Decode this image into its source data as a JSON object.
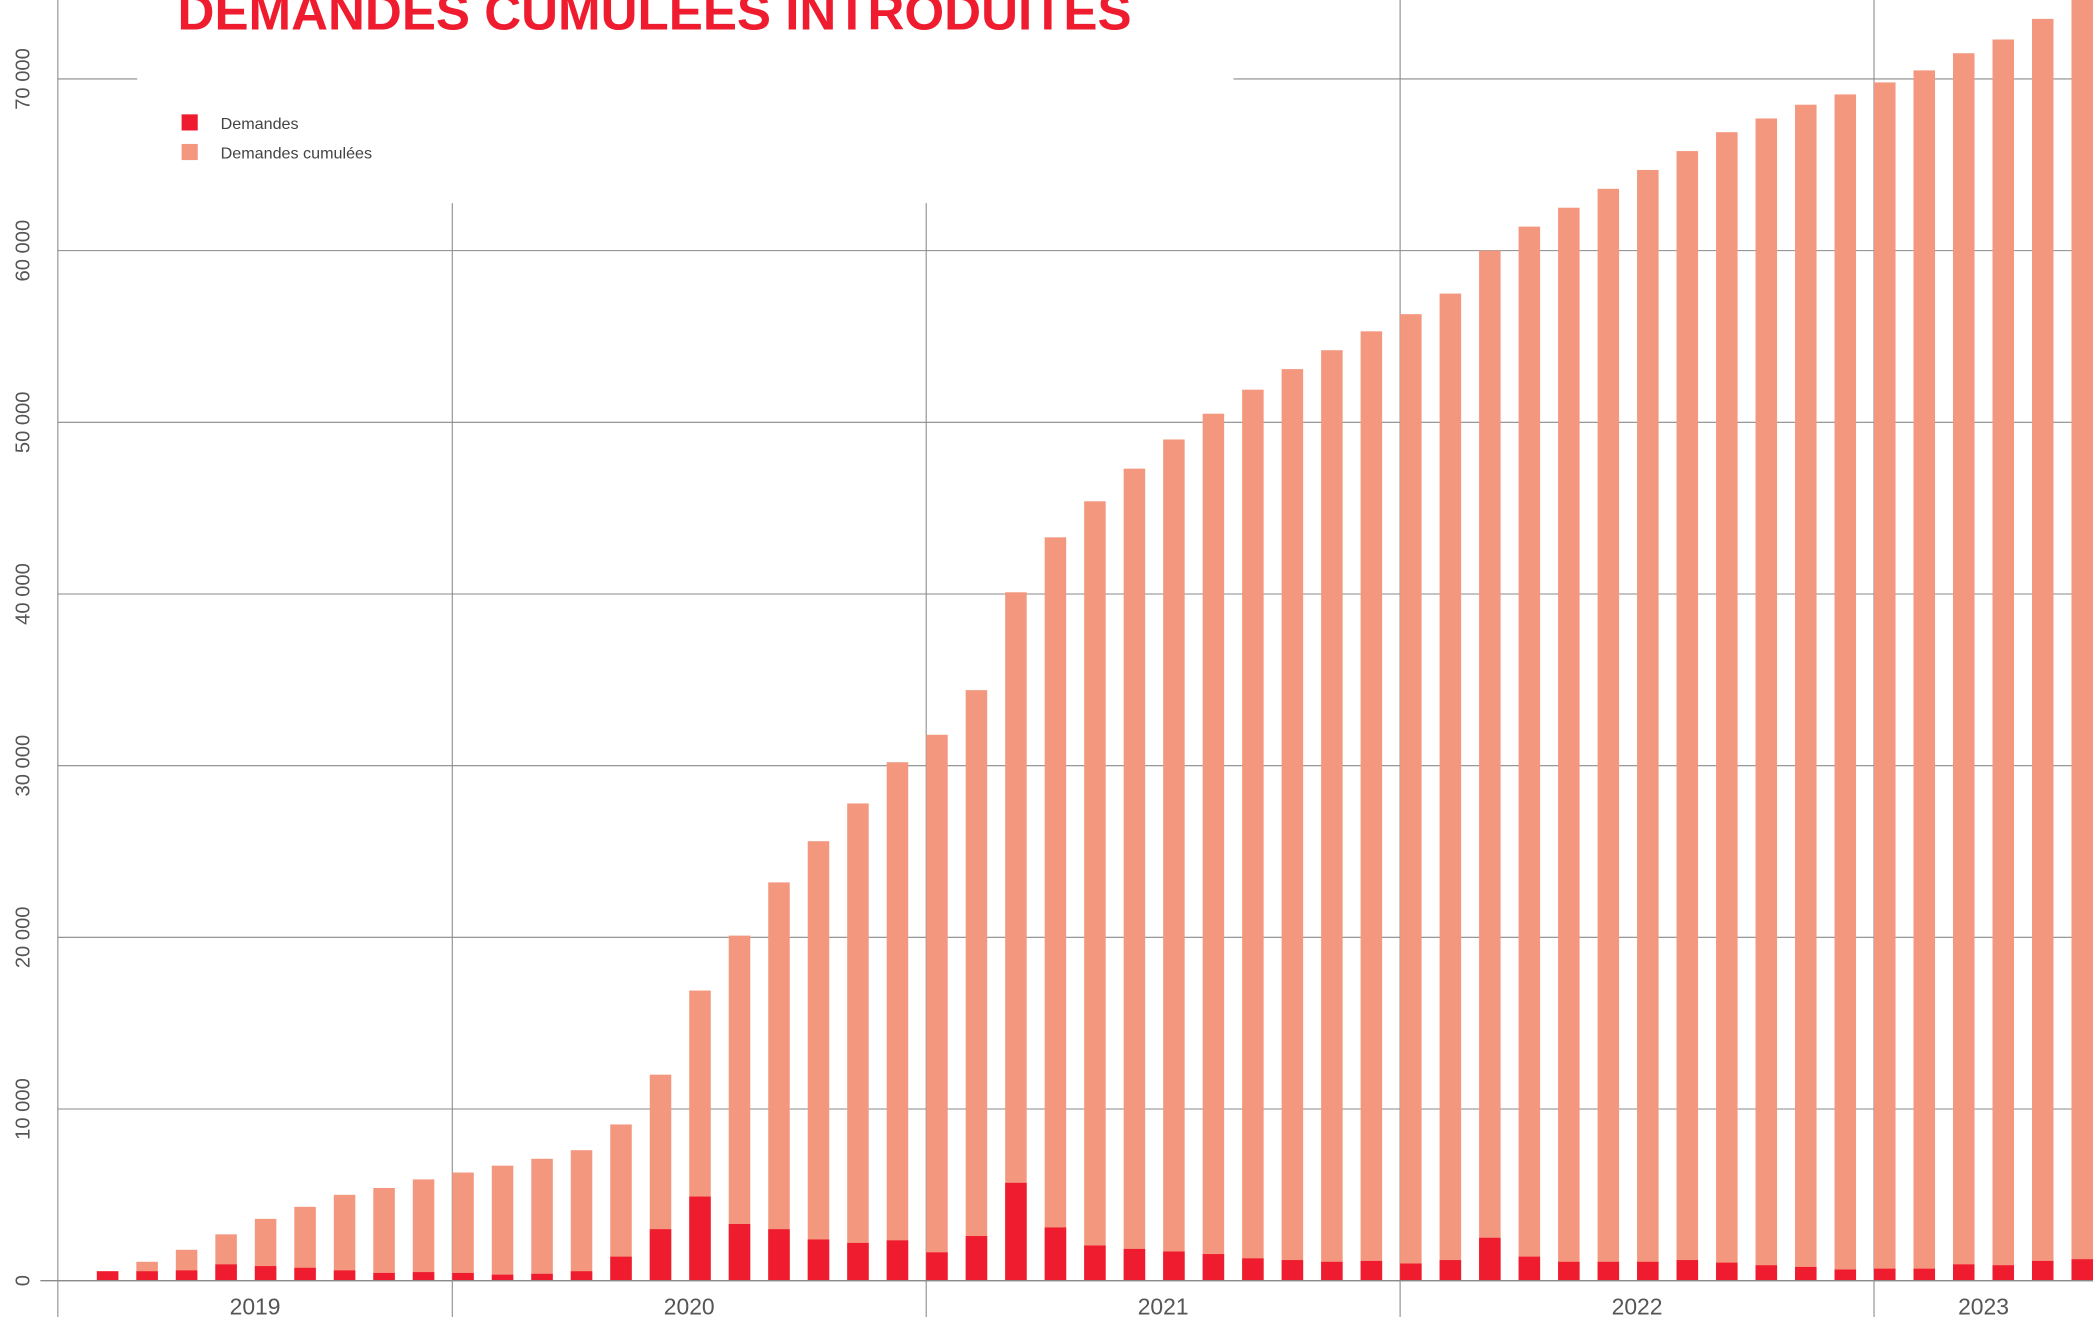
{
  "chart_data": {
    "type": "bar",
    "title": "DEMANDES CUMULÉES INTRODUITES",
    "categories": [
      null,
      null,
      null,
      null,
      null,
      null,
      null,
      null,
      null,
      null,
      null,
      null,
      null,
      null,
      null,
      null,
      null,
      null,
      null,
      null,
      null,
      null,
      null,
      null,
      null,
      null,
      null,
      null,
      null,
      null,
      null,
      null,
      null,
      null,
      null,
      null,
      null,
      null,
      null,
      null,
      null,
      null,
      null,
      null,
      null,
      null,
      null,
      null,
      null,
      null,
      null
    ],
    "groups": [
      {
        "label": "2019",
        "count": 9
      },
      {
        "label": "2020",
        "count": 12
      },
      {
        "label": "2021",
        "count": 12
      },
      {
        "label": "2022",
        "count": 12
      },
      {
        "label": "2023",
        "count": 6
      }
    ],
    "series": [
      {
        "name": "Demandes cumulées",
        "color": "#f4977f",
        "values": [
          550,
          1100,
          1800,
          2700,
          3600,
          4300,
          5000,
          5400,
          5900,
          6300,
          6700,
          7100,
          7600,
          9100,
          12000,
          16900,
          20100,
          23200,
          25600,
          27800,
          30200,
          31800,
          34400,
          40100,
          43300,
          45400,
          47300,
          49000,
          50500,
          51900,
          53100,
          54200,
          55300,
          56300,
          57500,
          60000,
          61400,
          62500,
          63600,
          64700,
          65800,
          66900,
          67700,
          68500,
          69100,
          69800,
          70500,
          71500,
          72300,
          73500,
          75500
        ]
      },
      {
        "name": "Demandes",
        "color": "#ee1c2e",
        "values": [
          550,
          550,
          600,
          950,
          850,
          750,
          600,
          450,
          500,
          450,
          350,
          400,
          550,
          1400,
          3000,
          4900,
          3300,
          3000,
          2400,
          2200,
          2350,
          1650,
          2600,
          5700,
          3100,
          2050,
          1850,
          1700,
          1550,
          1300,
          1200,
          1100,
          1150,
          1000,
          1200,
          2500,
          1400,
          1100,
          1100,
          1100,
          1200,
          1050,
          900,
          800,
          650,
          700,
          700,
          950,
          900,
          1150,
          1250
        ]
      }
    ],
    "ylim": [
      0,
      74600
    ],
    "yticks": [
      {
        "value": 0,
        "label": "0"
      },
      {
        "value": 10000,
        "label": "10 000"
      },
      {
        "value": 20000,
        "label": "20 000"
      },
      {
        "value": 30000,
        "label": "30 000"
      },
      {
        "value": 40000,
        "label": "40 000"
      },
      {
        "value": 50000,
        "label": "50 000"
      },
      {
        "value": 60000,
        "label": "60 000"
      },
      {
        "value": 70000,
        "label": "70 000"
      }
    ],
    "grid": true,
    "legend": "top-left"
  }
}
